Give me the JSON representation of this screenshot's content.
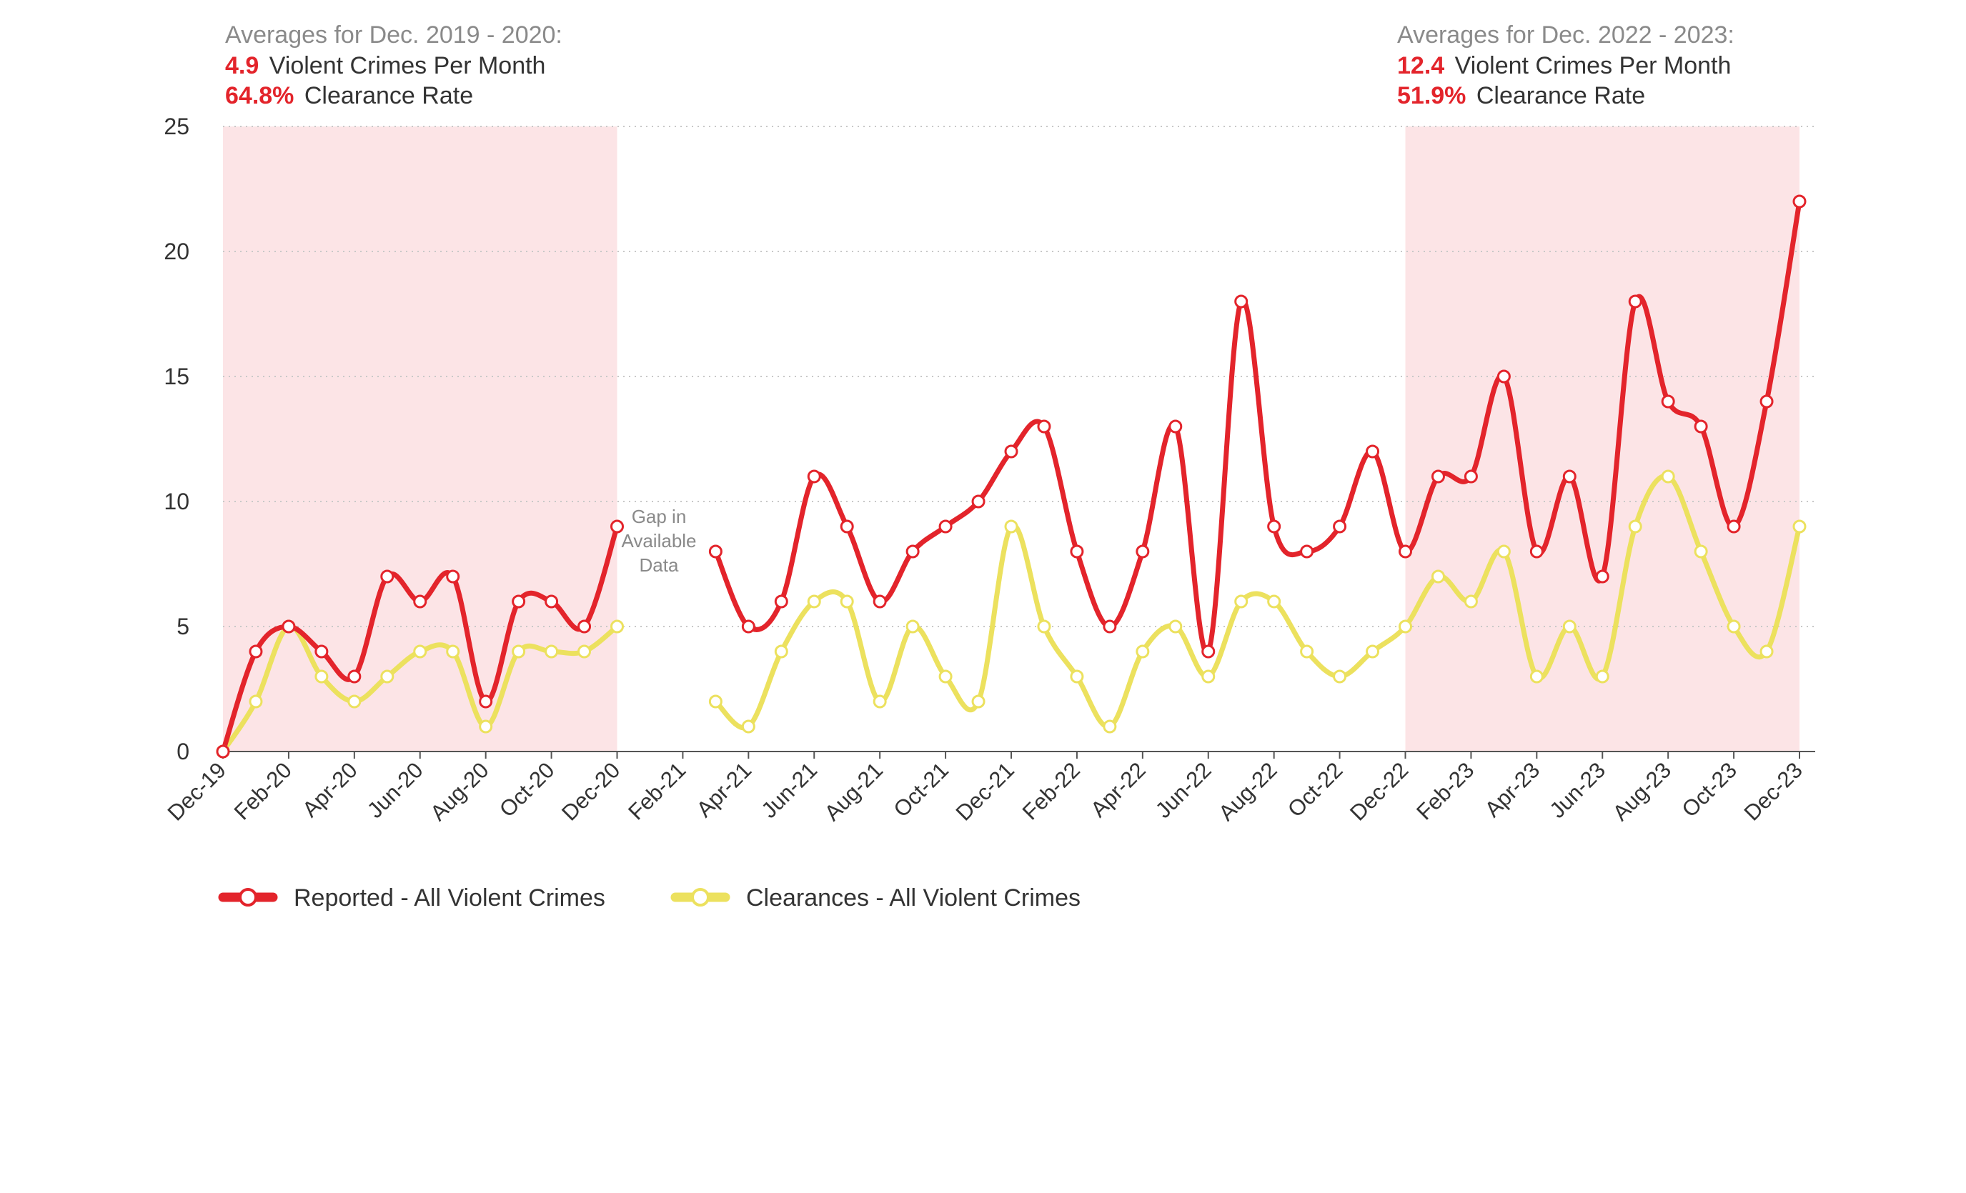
{
  "chart_data": {
    "type": "line",
    "title": "",
    "xlabel": "",
    "ylabel": "",
    "ylim": [
      0,
      25
    ],
    "yticks": [
      0,
      5,
      10,
      15,
      20,
      25
    ],
    "grid": "horizontal dotted",
    "legend": "bottom-left",
    "x": [
      "Dec-19",
      "Jan-20",
      "Feb-20",
      "Mar-20",
      "Apr-20",
      "May-20",
      "Jun-20",
      "Jul-20",
      "Aug-20",
      "Sep-20",
      "Oct-20",
      "Nov-20",
      "Dec-20",
      "Jan-21",
      "Feb-21",
      "Mar-21",
      "Apr-21",
      "May-21",
      "Jun-21",
      "Jul-21",
      "Aug-21",
      "Sep-21",
      "Oct-21",
      "Nov-21",
      "Dec-21",
      "Jan-22",
      "Feb-22",
      "Mar-22",
      "Apr-22",
      "May-22",
      "Jun-22",
      "Jul-22",
      "Aug-22",
      "Sep-22",
      "Oct-22",
      "Nov-22",
      "Dec-22",
      "Jan-23",
      "Feb-23",
      "Mar-23",
      "Apr-23",
      "May-23",
      "Jun-23",
      "Jul-23",
      "Aug-23",
      "Sep-23",
      "Oct-23",
      "Nov-23",
      "Dec-23"
    ],
    "x_tick_labels": [
      "Dec-19",
      "Feb-20",
      "Apr-20",
      "Jun-20",
      "Aug-20",
      "Oct-20",
      "Dec-20",
      "Feb-21",
      "Apr-21",
      "Jun-21",
      "Aug-21",
      "Oct-21",
      "Dec-21",
      "Feb-22",
      "Apr-22",
      "Jun-22",
      "Aug-22",
      "Oct-22",
      "Dec-22",
      "Feb-23",
      "Apr-23",
      "Jun-23",
      "Aug-23",
      "Oct-23",
      "Dec-23"
    ],
    "series": [
      {
        "name": "Reported - All Violent Crimes",
        "color": "#e3242b",
        "values": [
          0,
          4,
          5,
          4,
          3,
          7,
          6,
          7,
          2,
          6,
          6,
          5,
          9,
          null,
          null,
          8,
          5,
          6,
          11,
          9,
          6,
          8,
          9,
          10,
          12,
          13,
          8,
          5,
          8,
          13,
          4,
          18,
          9,
          8,
          9,
          12,
          8,
          11,
          11,
          15,
          8,
          11,
          7,
          18,
          14,
          13,
          9,
          14,
          22
        ]
      },
      {
        "name": "Clearances - All Violent Crimes",
        "color": "#ece15e",
        "values": [
          0,
          2,
          5,
          3,
          2,
          3,
          4,
          4,
          1,
          4,
          4,
          4,
          5,
          null,
          null,
          2,
          1,
          4,
          6,
          6,
          2,
          5,
          3,
          2,
          9,
          5,
          3,
          1,
          4,
          5,
          3,
          6,
          6,
          4,
          3,
          4,
          5,
          7,
          6,
          8,
          3,
          5,
          3,
          9,
          11,
          8,
          5,
          4,
          9
        ]
      }
    ],
    "highlight_periods": [
      {
        "start": "Dec-19",
        "end": "Dec-20",
        "color": "#fce4e6"
      },
      {
        "start": "Dec-22",
        "end": "Dec-23",
        "color": "#fce4e6"
      }
    ],
    "annotations": {
      "left": {
        "heading": "Averages for Dec. 2019 - 2020:",
        "crimes_value": "4.9",
        "crimes_text": "Violent Crimes Per Month",
        "clearance_value": "64.8%",
        "clearance_text": "Clearance Rate"
      },
      "right": {
        "heading": "Averages for Dec. 2022 - 2023:",
        "crimes_value": "12.4",
        "crimes_text": "Violent Crimes Per Month",
        "clearance_value": "51.9%",
        "clearance_text": "Clearance Rate"
      },
      "gap_note": [
        "Gap in",
        "Available",
        "Data"
      ]
    }
  }
}
